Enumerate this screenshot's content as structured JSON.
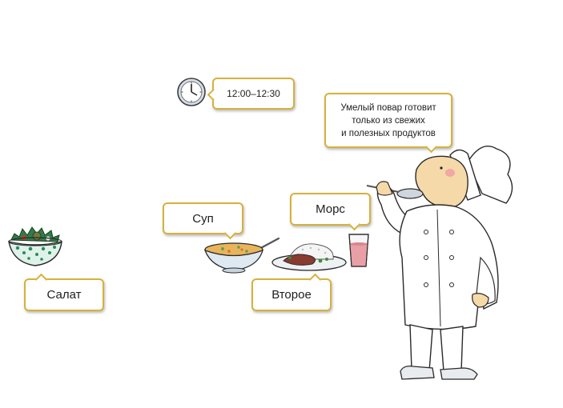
{
  "labels": {
    "time": "12:00–12:30",
    "chef_quote": [
      "Умелый повар готовит",
      "только из свежих",
      "и полезных продуктов"
    ],
    "soup": "Суп",
    "drink": "Морс",
    "salad": "Салат",
    "main_course": "Второе"
  },
  "colors": {
    "bubble_border": "#d6b13c",
    "drink": "#e8a0a6",
    "salad_green": "#2e8b57",
    "soup_broth": "#e9b45a",
    "chef_skin": "#f6d9a8"
  },
  "icons": [
    "clock-icon",
    "salad-bowl-icon",
    "soup-bowl-icon",
    "main-course-plate-icon",
    "drink-glass-icon",
    "chef-illustration"
  ]
}
